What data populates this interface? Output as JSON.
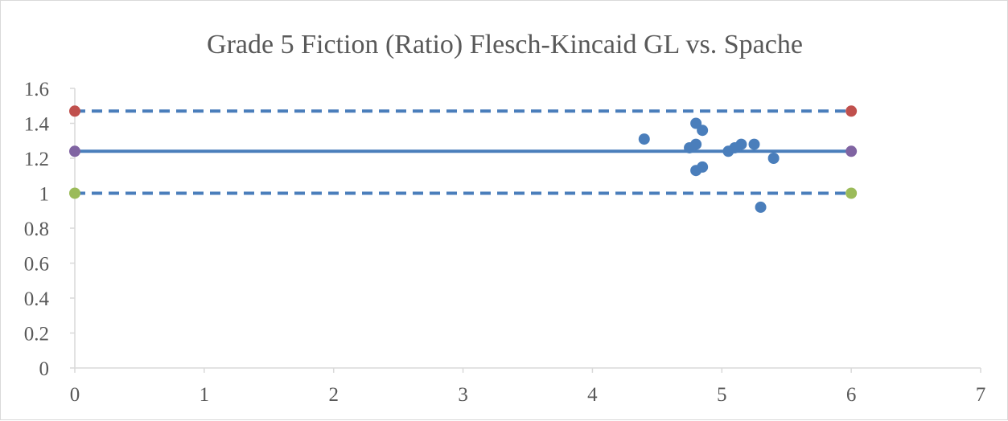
{
  "chart_data": {
    "type": "scatter",
    "title": "Grade 5 Fiction (Ratio) Flesch-Kincaid GL vs. Spache",
    "xlim": [
      0,
      7
    ],
    "ylim": [
      0,
      1.6
    ],
    "xticks": [
      "0",
      "1",
      "2",
      "3",
      "4",
      "5",
      "6",
      "7"
    ],
    "yticks": [
      "0",
      "0.2",
      "0.4",
      "0.6",
      "0.8",
      "1",
      "1.2",
      "1.4",
      "1.6"
    ],
    "grid": false,
    "legend": "none",
    "series": [
      {
        "kind": "scatter",
        "color": "#4a7ebb",
        "points": [
          {
            "x": 4.4,
            "y": 1.31
          },
          {
            "x": 4.75,
            "y": 1.26
          },
          {
            "x": 4.8,
            "y": 1.28
          },
          {
            "x": 4.8,
            "y": 1.4
          },
          {
            "x": 4.85,
            "y": 1.36
          },
          {
            "x": 4.8,
            "y": 1.13
          },
          {
            "x": 4.85,
            "y": 1.15
          },
          {
            "x": 5.05,
            "y": 1.24
          },
          {
            "x": 5.1,
            "y": 1.26
          },
          {
            "x": 5.15,
            "y": 1.28
          },
          {
            "x": 5.25,
            "y": 1.28
          },
          {
            "x": 5.4,
            "y": 1.2
          },
          {
            "x": 5.3,
            "y": 0.92
          }
        ]
      },
      {
        "kind": "line",
        "style": "dashed",
        "color": "#4a7ebb",
        "marker_color": "#c0504d",
        "points": [
          {
            "x": 0,
            "y": 1.47
          },
          {
            "x": 6,
            "y": 1.47
          }
        ]
      },
      {
        "kind": "line",
        "style": "solid",
        "color": "#4a7ebb",
        "marker_color": "#8064a2",
        "points": [
          {
            "x": 0,
            "y": 1.24
          },
          {
            "x": 6,
            "y": 1.24
          }
        ]
      },
      {
        "kind": "line",
        "style": "dashed",
        "color": "#4a7ebb",
        "marker_color": "#9bbb59",
        "points": [
          {
            "x": 0,
            "y": 1.0
          },
          {
            "x": 6,
            "y": 1.0
          }
        ]
      }
    ]
  }
}
